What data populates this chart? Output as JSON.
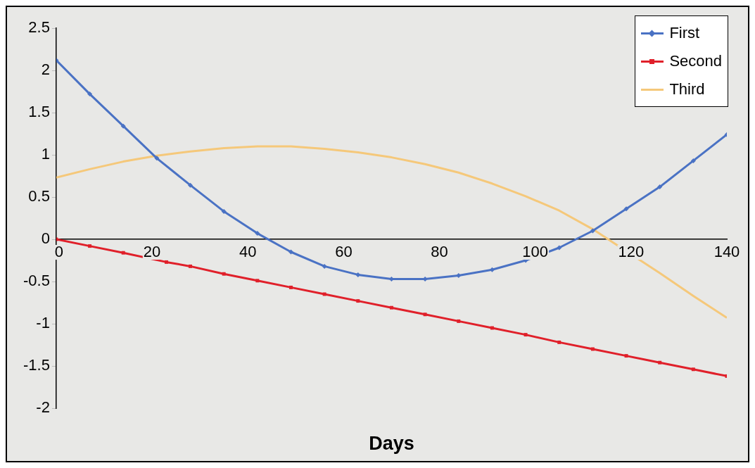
{
  "chart_data": {
    "type": "line",
    "xlabel": "Days",
    "legend": "top right",
    "grid": false,
    "x": [
      0,
      7,
      14,
      21,
      28,
      35,
      42,
      49,
      56,
      63,
      70,
      77,
      84,
      91,
      98,
      105,
      112,
      119,
      126,
      133,
      140
    ],
    "xlim": [
      0,
      140
    ],
    "xticks": [
      0,
      20,
      40,
      60,
      80,
      100,
      120,
      140
    ],
    "ylim": [
      -2,
      2.5
    ],
    "yticks": [
      -2,
      -1.5,
      -1,
      -0.5,
      0,
      0.5,
      1,
      1.5,
      2,
      2.5
    ],
    "series": [
      {
        "name": "First",
        "color": "#4a72c4",
        "marker": "diamond",
        "values": [
          2.12,
          1.72,
          1.34,
          0.96,
          0.64,
          0.33,
          0.07,
          -0.15,
          -0.32,
          -0.42,
          -0.47,
          -0.47,
          -0.43,
          -0.36,
          -0.25,
          -0.1,
          0.1,
          0.36,
          0.62,
          0.93,
          1.24
        ]
      },
      {
        "name": "Second",
        "color": "#e0202a",
        "marker": "square",
        "x": [
          0,
          7,
          14,
          23,
          28,
          35,
          42,
          49,
          56,
          63,
          70,
          77,
          84,
          91,
          98,
          105,
          112,
          119,
          126,
          133,
          140
        ],
        "values": [
          0,
          -0.08,
          -0.16,
          -0.27,
          -0.32,
          -0.41,
          -0.49,
          -0.57,
          -0.65,
          -0.73,
          -0.81,
          -0.89,
          -0.97,
          -1.05,
          -1.13,
          -1.22,
          -1.3,
          -1.38,
          -1.46,
          -1.54,
          -1.62
        ]
      },
      {
        "name": "Third",
        "color": "#f5c87a",
        "marker": "none",
        "x": [
          0,
          7,
          14,
          21,
          28,
          35,
          42,
          49,
          56,
          63,
          70,
          77,
          84,
          91,
          98,
          105,
          112,
          116,
          126,
          133,
          140
        ],
        "values": [
          0.73,
          0.83,
          0.92,
          0.99,
          1.04,
          1.08,
          1.1,
          1.1,
          1.07,
          1.03,
          0.97,
          0.89,
          0.79,
          0.66,
          0.51,
          0.34,
          0.12,
          -0.03,
          -0.4,
          -0.67,
          -0.93
        ]
      }
    ]
  }
}
